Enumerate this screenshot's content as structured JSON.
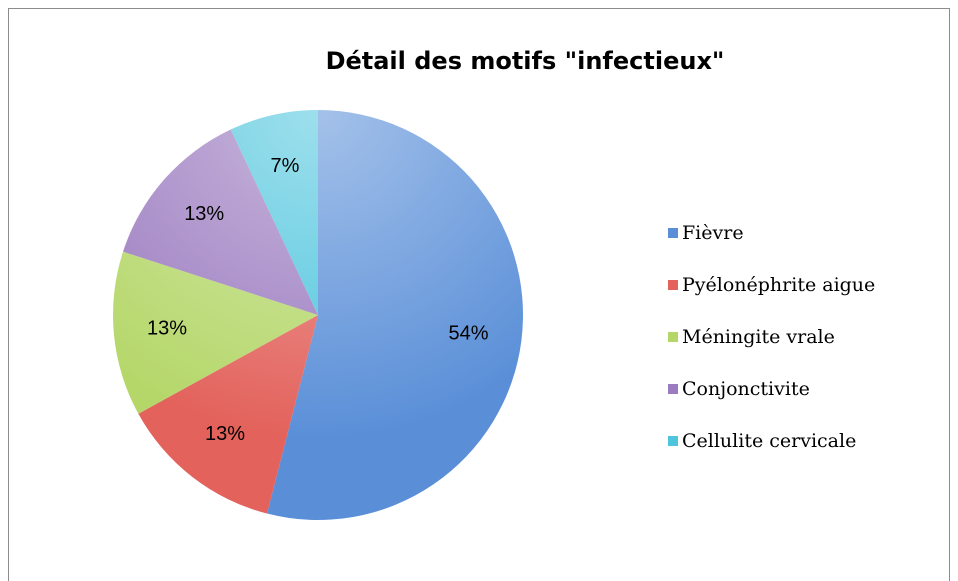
{
  "chart_data": {
    "type": "pie",
    "title": "Détail des motifs \"infectieux\"",
    "categories": [
      "Fièvre",
      "Pyélonéphrite aigue",
      "Méningite vrale",
      "Conjonctivite",
      "Cellulite cervicale"
    ],
    "values": [
      54,
      13,
      13,
      13,
      7
    ],
    "value_labels": [
      "54%",
      "13%",
      "13%",
      "13%",
      "7%"
    ],
    "colors": [
      "#5a8fd8",
      "#e3625c",
      "#b5d76a",
      "#9c7cc0",
      "#4ec5dd"
    ],
    "legend": "right"
  }
}
